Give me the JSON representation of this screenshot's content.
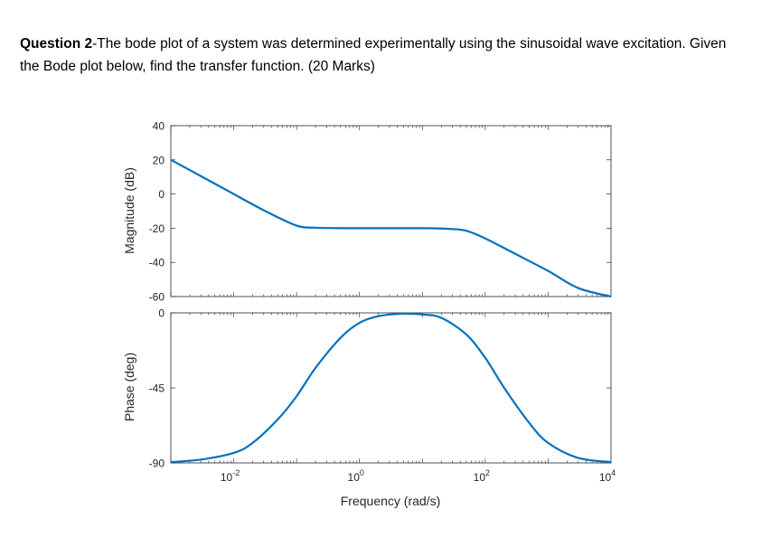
{
  "question": {
    "label": "Question 2",
    "text": "-The bode plot of a system was determined experimentally using the sinusoidal wave excitation. Given the Bode plot below, find the transfer function. (20 Marks)"
  },
  "chart_data": [
    {
      "type": "line",
      "ylabel": "Magnitude (dB)",
      "xscale": "log",
      "xlim": [
        0.001,
        10000
      ],
      "ylim": [
        -60,
        40
      ],
      "yticks": [
        "40",
        "20",
        "0",
        "-20",
        "-40",
        "-60"
      ],
      "color": "#0072BD",
      "series": [
        {
          "x": [
            0.001,
            0.003,
            0.01,
            0.03,
            0.1,
            0.2,
            0.3,
            0.5,
            1,
            3,
            10,
            20,
            30,
            50,
            100,
            300,
            1000,
            3000,
            10000
          ],
          "y": [
            20,
            10.5,
            0,
            -9.5,
            -18.5,
            -19.7,
            -19.9,
            -20,
            -20,
            -20,
            -20,
            -20.2,
            -20.5,
            -21.5,
            -26,
            -35,
            -45,
            -55,
            -60
          ]
        }
      ]
    },
    {
      "type": "line",
      "ylabel": "Phase (deg)",
      "xlabel": "Frequency (rad/s)",
      "xscale": "log",
      "xlim": [
        0.001,
        10000
      ],
      "ylim": [
        -90,
        0
      ],
      "yticks": [
        "0",
        "-45",
        "-90"
      ],
      "xticks": [
        {
          "base": "10",
          "exp": "-2",
          "value": 0.01
        },
        {
          "base": "10",
          "exp": "0",
          "value": 1
        },
        {
          "base": "10",
          "exp": "2",
          "value": 100
        },
        {
          "base": "10",
          "exp": "4",
          "value": 10000
        }
      ],
      "color": "#0072BD",
      "series": [
        {
          "x": [
            0.001,
            0.003,
            0.01,
            0.02,
            0.05,
            0.1,
            0.2,
            0.5,
            1,
            2,
            5,
            10,
            20,
            50,
            100,
            200,
            500,
            1000,
            3000,
            10000
          ],
          "y": [
            -89.5,
            -88,
            -84,
            -78,
            -64,
            -50,
            -33,
            -15,
            -6,
            -2,
            -0.5,
            -1,
            -3,
            -13,
            -27,
            -45,
            -66,
            -78,
            -87,
            -89.5
          ]
        }
      ]
    }
  ]
}
